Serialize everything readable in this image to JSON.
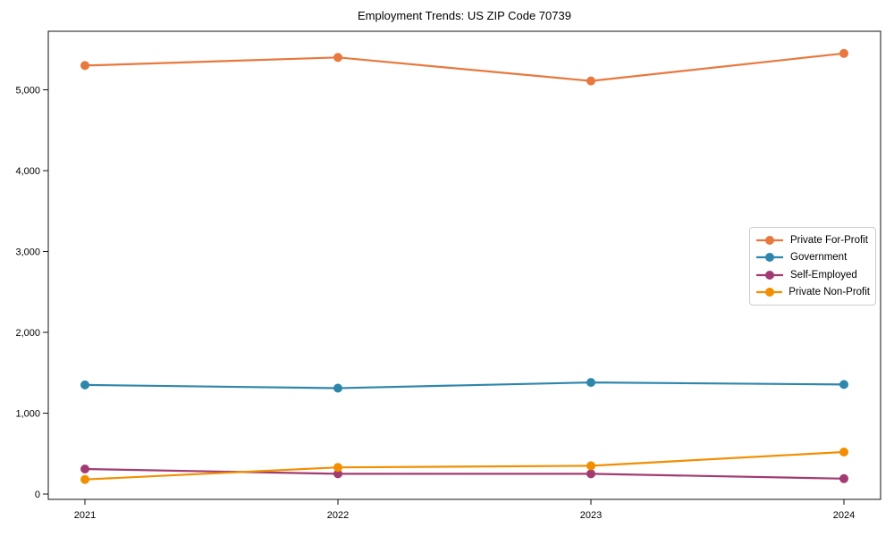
{
  "chart_data": {
    "type": "line",
    "title": "Employment Trends: US ZIP Code 70739",
    "x": [
      "2021",
      "2022",
      "2023",
      "2024"
    ],
    "series": [
      {
        "name": "Private For-Profit",
        "color": "#E8783E",
        "values": [
          5300,
          5400,
          5110,
          5450
        ]
      },
      {
        "name": "Government",
        "color": "#2E86AB",
        "values": [
          1350,
          1310,
          1380,
          1355
        ]
      },
      {
        "name": "Self-Employed",
        "color": "#A23B72",
        "values": [
          310,
          250,
          250,
          190
        ]
      },
      {
        "name": "Private Non-Profit",
        "color": "#F18F01",
        "values": [
          180,
          330,
          350,
          520
        ]
      }
    ],
    "xlabel": "",
    "ylabel": "",
    "ylim": [
      -66,
      5724
    ],
    "yticks": [
      0,
      1000,
      2000,
      3000,
      4000,
      5000
    ],
    "ytick_labels": [
      "0",
      "1,000",
      "2,000",
      "3,000",
      "4,000",
      "5,000"
    ],
    "grid": false,
    "legend_position": "center-right",
    "marker": "circle",
    "axis_color": "#111111",
    "background": "#ffffff"
  }
}
